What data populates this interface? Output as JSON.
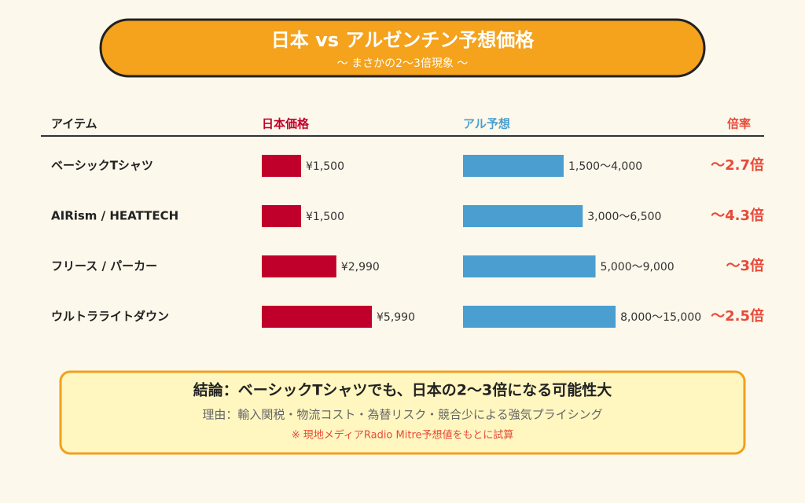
{
  "header": {
    "title": "日本 vs アルゼンチン予想価格",
    "subtitle": "〜 まさかの2〜3倍現象 〜"
  },
  "table": {
    "columns": [
      "アイテム",
      "日本価格",
      "アル予想",
      "倍率"
    ],
    "bar_scale": "log",
    "japan_color": "#c0002a",
    "argentina_color": "#4a9fd0",
    "rows": [
      {
        "item": "ベーシックTシャツ",
        "japan": 1500,
        "japan_label": "¥1,500",
        "argentina": [
          1500,
          4000
        ],
        "argentina_label": "1,500〜4,000",
        "ratio": "〜2.7倍"
      },
      {
        "item": "AIRism / HEATTECH",
        "japan": 1500,
        "japan_label": "¥1,500",
        "argentina": [
          3000,
          6500
        ],
        "argentina_label": "3,000〜6,500",
        "ratio": "〜4.3倍"
      },
      {
        "item": "フリース / パーカー",
        "japan": 2990,
        "japan_label": "¥2,990",
        "argentina": [
          5000,
          9000
        ],
        "argentina_label": "5,000〜9,000",
        "ratio": "〜3倍"
      },
      {
        "item": "ウルトラライトダウン",
        "japan": 5990,
        "japan_label": "¥5,990",
        "argentina": [
          8000,
          15000
        ],
        "argentina_label": "8,000〜15,000",
        "ratio": "〜2.5倍"
      }
    ]
  },
  "footer": {
    "conclusion": "結論：ベーシックTシャツでも、日本の2〜3倍になる可能性大",
    "reason": "理由：輸入関税・物流コスト・為替リスク・競合少による強気プライシング",
    "note": "※ 現地メディアRadio Mitre予想値をもとに試算"
  }
}
